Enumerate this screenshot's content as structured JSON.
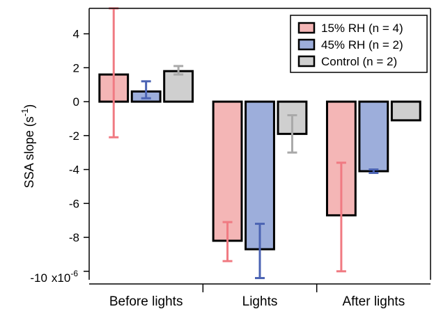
{
  "chart_data": {
    "type": "bar",
    "ylabel": "SSA slope (s",
    "ylabel_exp": "-1",
    "ylabel_close": ")",
    "y_scale_label": "x10",
    "y_scale_exp": "-6",
    "ylim": [
      -10.5,
      5.5
    ],
    "yticks": [
      4,
      2,
      0,
      -2,
      -4,
      -6,
      -8
    ],
    "ytick_labels": [
      "4",
      "2",
      "0",
      "-2",
      "-4",
      "-6",
      "-8"
    ],
    "ybottom_tick": -10,
    "ybottom_tick_label": "-10",
    "categories": [
      "Before lights",
      "Lights",
      "After lights"
    ],
    "legend_position": "top-right",
    "grid": false,
    "series": [
      {
        "name": "15% RH (n = 4)",
        "color": "#f4b6b6",
        "error_color": "#f07a82",
        "values": [
          1.6,
          -8.2,
          -6.7
        ],
        "error_low": [
          -2.1,
          -9.4,
          -10.0
        ],
        "error_high": [
          5.5,
          -7.1,
          -3.6
        ]
      },
      {
        "name": "45% RH (n = 2)",
        "color": "#9daedb",
        "error_color": "#4b63b3",
        "values": [
          0.6,
          -8.7,
          -4.1
        ],
        "error_low": [
          0.2,
          -10.4,
          -4.2
        ],
        "error_high": [
          1.2,
          -7.2,
          -4.0
        ]
      },
      {
        "name": "Control (n = 2)",
        "color": "#cfcfcf",
        "error_color": "#a9a9a9",
        "values": [
          1.8,
          -1.9,
          -1.1
        ],
        "error_low": [
          1.6,
          -3.0,
          -1.1
        ],
        "error_high": [
          2.1,
          -0.8,
          -1.1
        ]
      }
    ]
  }
}
